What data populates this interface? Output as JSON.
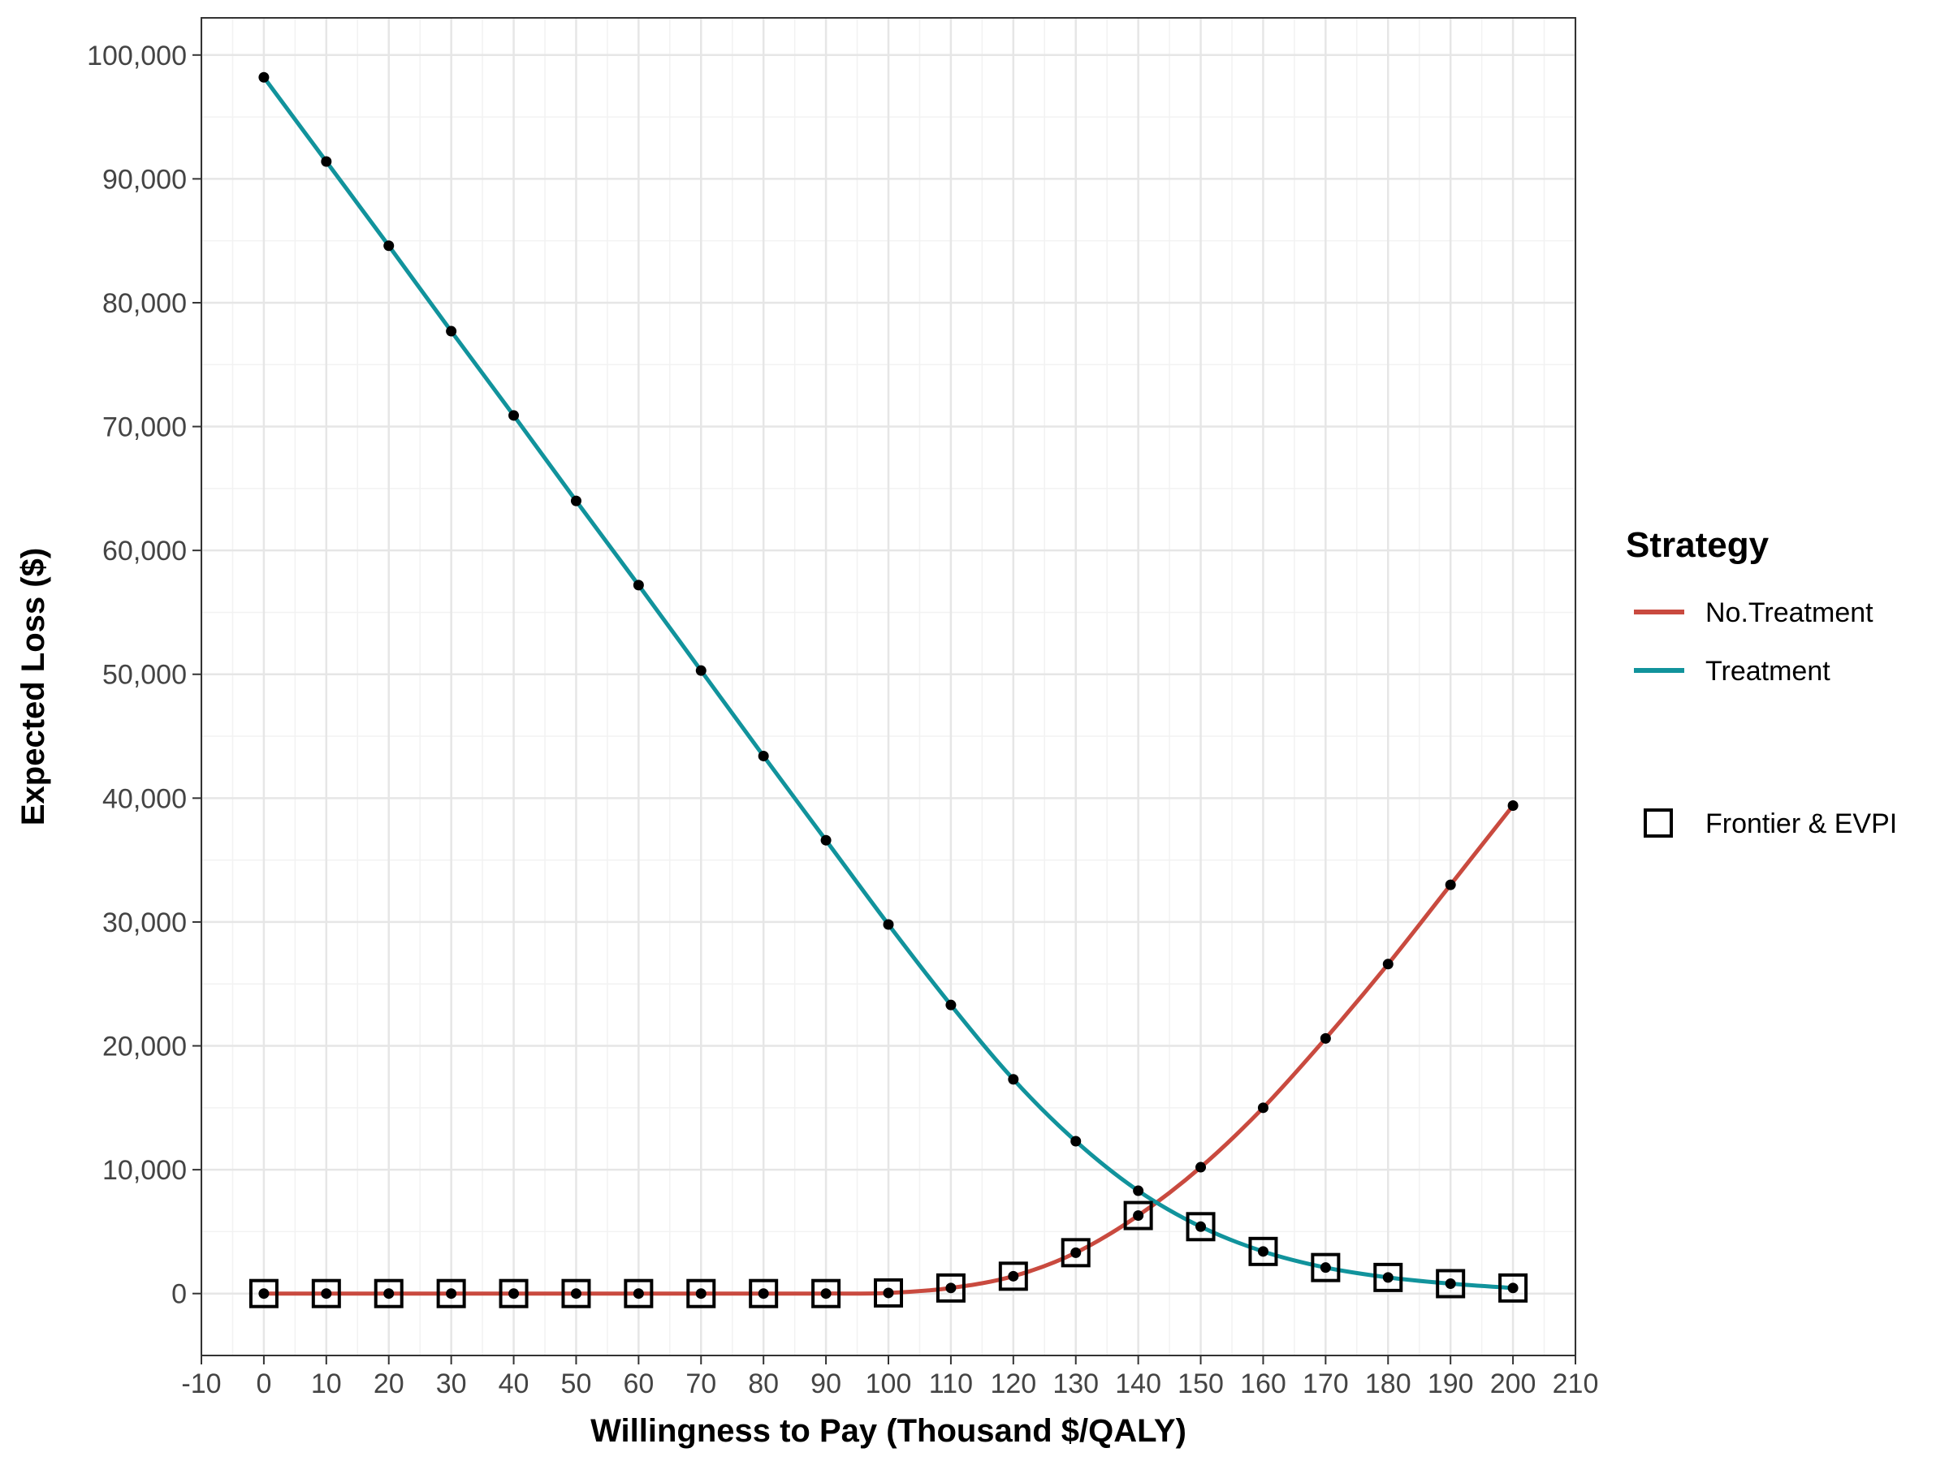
{
  "chart_data": {
    "type": "line",
    "title": "",
    "xlabel": "Willingness to Pay (Thousand $/QALY)",
    "ylabel": "Expected Loss ($)",
    "xlim": [
      -10,
      210
    ],
    "ylim": [
      -5000,
      103000
    ],
    "x_ticks": [
      -10,
      0,
      10,
      20,
      30,
      40,
      50,
      60,
      70,
      80,
      90,
      100,
      110,
      120,
      130,
      140,
      150,
      160,
      170,
      180,
      190,
      200,
      210
    ],
    "y_ticks": [
      0,
      10000,
      20000,
      30000,
      40000,
      50000,
      60000,
      70000,
      80000,
      90000,
      100000
    ],
    "x_tick_labels": [
      "-10",
      "0",
      "10",
      "20",
      "30",
      "40",
      "50",
      "60",
      "70",
      "80",
      "90",
      "100",
      "110",
      "120",
      "130",
      "140",
      "150",
      "160",
      "170",
      "180",
      "190",
      "200",
      "210"
    ],
    "y_tick_labels": [
      "0",
      "10,000",
      "20,000",
      "30,000",
      "40,000",
      "50,000",
      "60,000",
      "70,000",
      "80,000",
      "90,000",
      "100,000"
    ],
    "grid": true,
    "legend_title": "Strategy",
    "legend_position": "right",
    "x": [
      0,
      10,
      20,
      30,
      40,
      50,
      60,
      70,
      80,
      90,
      100,
      110,
      120,
      130,
      140,
      150,
      160,
      170,
      180,
      190,
      200
    ],
    "series": [
      {
        "name": "No.Treatment",
        "color": "#c94a3f",
        "values": [
          0,
          0,
          0,
          0,
          0,
          0,
          0,
          0,
          0,
          0,
          50,
          450,
          1400,
          3300,
          6300,
          10200,
          15000,
          20600,
          26600,
          33000,
          39400
        ]
      },
      {
        "name": "Treatment",
        "color": "#11939c",
        "values": [
          98200,
          91400,
          84600,
          77700,
          70900,
          64000,
          57200,
          50300,
          43400,
          36600,
          29800,
          23300,
          17300,
          12300,
          8300,
          5400,
          3400,
          2100,
          1300,
          800,
          450
        ]
      }
    ],
    "frontier_label": "Frontier & EVPI",
    "frontier_values": [
      0,
      0,
      0,
      0,
      0,
      0,
      0,
      0,
      0,
      0,
      50,
      450,
      1400,
      3300,
      6300,
      5400,
      3400,
      2100,
      1300,
      800,
      450
    ]
  }
}
